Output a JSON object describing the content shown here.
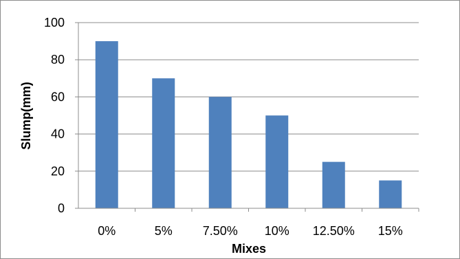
{
  "chart_data": {
    "type": "bar",
    "title": "",
    "xlabel": "Mixes",
    "ylabel": "Slump(mm)",
    "categories": [
      "0%",
      "5%",
      "7.50%",
      "10%",
      "12.50%",
      "15%"
    ],
    "values": [
      90,
      70,
      60,
      50,
      25,
      15
    ],
    "ylim": [
      0,
      100
    ],
    "yticks": [
      0,
      20,
      40,
      60,
      80,
      100
    ],
    "grid": true,
    "legend": "none",
    "bar_color": "#4f81bd",
    "grid_color": "#8c8c8c"
  }
}
